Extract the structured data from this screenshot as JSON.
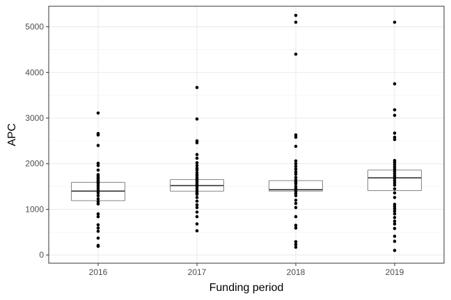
{
  "chart_data": {
    "type": "box",
    "title": "",
    "xlabel": "Funding period",
    "ylabel": "APC",
    "categories": [
      "2016",
      "2017",
      "2018",
      "2019"
    ],
    "ylim": [
      -180,
      5450
    ],
    "yticks": [
      0,
      1000,
      2000,
      3000,
      4000,
      5000
    ],
    "grid": true,
    "boxes": [
      {
        "category": "2016",
        "lower_whisker": 1190,
        "q1": 1190,
        "median": 1400,
        "q3": 1590,
        "upper_whisker": 1590
      },
      {
        "category": "2017",
        "lower_whisker": 1400,
        "q1": 1400,
        "median": 1520,
        "q3": 1650,
        "upper_whisker": 1650
      },
      {
        "category": "2018",
        "lower_whisker": 1400,
        "q1": 1400,
        "median": 1430,
        "q3": 1630,
        "upper_whisker": 1630
      },
      {
        "category": "2019",
        "lower_whisker": 1410,
        "q1": 1410,
        "median": 1690,
        "q3": 1860,
        "upper_whisker": 2050
      }
    ],
    "points": {
      "2016": [
        3110,
        2660,
        2630,
        2400,
        2010,
        1960,
        1860,
        1760,
        1730,
        1690,
        1660,
        1620,
        1600,
        1560,
        1510,
        1460,
        1410,
        1360,
        1300,
        1230,
        1170,
        1120,
        900,
        840,
        660,
        590,
        520,
        370,
        210,
        190
      ],
      "2017": [
        3670,
        2980,
        2500,
        2460,
        2200,
        2120,
        2020,
        1960,
        1900,
        1860,
        1800,
        1750,
        1700,
        1660,
        1620,
        1580,
        1540,
        1500,
        1450,
        1400,
        1360,
        1330,
        1260,
        1180,
        1100,
        1040,
        940,
        840,
        680,
        530
      ],
      "2018": [
        5250,
        5100,
        4400,
        2630,
        2580,
        2380,
        2060,
        2000,
        1940,
        1880,
        1820,
        1770,
        1700,
        1640,
        1600,
        1560,
        1500,
        1450,
        1400,
        1350,
        1300,
        1200,
        1130,
        1040,
        840,
        650,
        590,
        290,
        230,
        170
      ],
      "2019": [
        5100,
        3750,
        3180,
        3060,
        2670,
        2580,
        2530,
        2070,
        2030,
        1980,
        1930,
        1880,
        1830,
        1780,
        1730,
        1680,
        1630,
        1580,
        1530,
        1450,
        1360,
        1260,
        1110,
        1060,
        1010,
        960,
        900,
        820,
        740,
        680,
        580,
        410,
        300,
        100
      ]
    }
  }
}
